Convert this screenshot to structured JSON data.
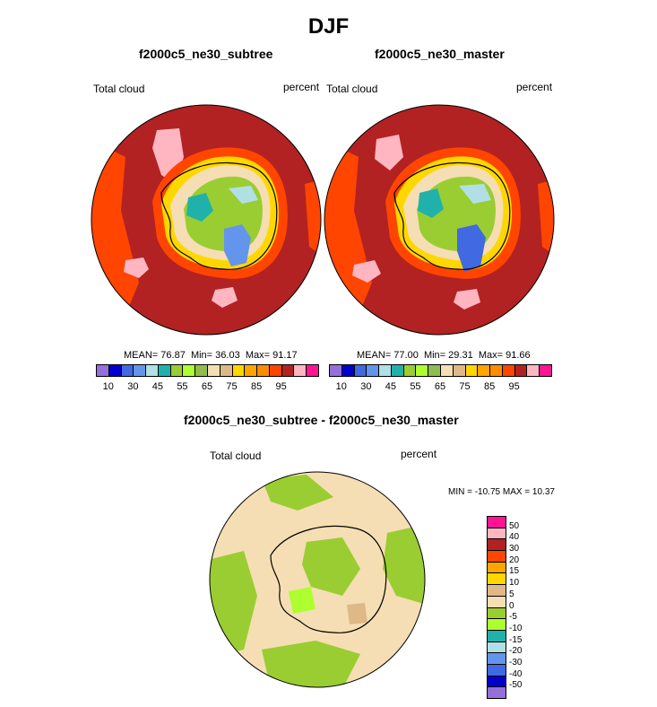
{
  "title": "DJF",
  "panels": [
    {
      "name": "subtree",
      "title": "f2000c5_ne30_subtree",
      "left_label": "Total cloud",
      "right_label": "percent",
      "stats": {
        "mean": "76.87",
        "min": "36.03",
        "max": "91.17"
      }
    },
    {
      "name": "master",
      "title": "f2000c5_ne30_master",
      "left_label": "Total cloud",
      "right_label": "percent",
      "stats": {
        "mean": "77.00",
        "min": "29.31",
        "max": "91.66"
      }
    }
  ],
  "stats_labels": {
    "mean": "MEAN=",
    "min": "Min=",
    "max": "Max="
  },
  "abs_colorbar": {
    "colors": [
      "#9370db",
      "#0000cd",
      "#4169e1",
      "#6495ed",
      "#b0e0e6",
      "#20b2aa",
      "#9acd32",
      "#adff2f",
      "#8fbc4f",
      "#f5deb3",
      "#deb887",
      "#ffd700",
      "#ffa500",
      "#ff8c00",
      "#ff4500",
      "#b22222",
      "#ffb6c1",
      "#ff1493"
    ],
    "tick_labels": [
      "10",
      "30",
      "45",
      "55",
      "65",
      "75",
      "85",
      "95"
    ]
  },
  "diff_panel": {
    "title": "f2000c5_ne30_subtree - f2000c5_ne30_master",
    "left_label": "Total cloud",
    "right_label": "percent",
    "minmax_label": "MIN = -10.75 MAX =  10.37"
  },
  "diff_colorbar": {
    "colors": [
      "#ff1493",
      "#ffb6c1",
      "#b22222",
      "#ff4500",
      "#ffa500",
      "#ffd700",
      "#deb887",
      "#f5deb3",
      "#9acd32",
      "#adff2f",
      "#20b2aa",
      "#b0e0e6",
      "#6495ed",
      "#4169e1",
      "#0000cd",
      "#9370db"
    ],
    "tick_labels": [
      "50",
      "40",
      "30",
      "20",
      "15",
      "10",
      "5",
      "0",
      "-5",
      "-10",
      "-15",
      "-20",
      "-30",
      "-40",
      "-50"
    ]
  }
}
